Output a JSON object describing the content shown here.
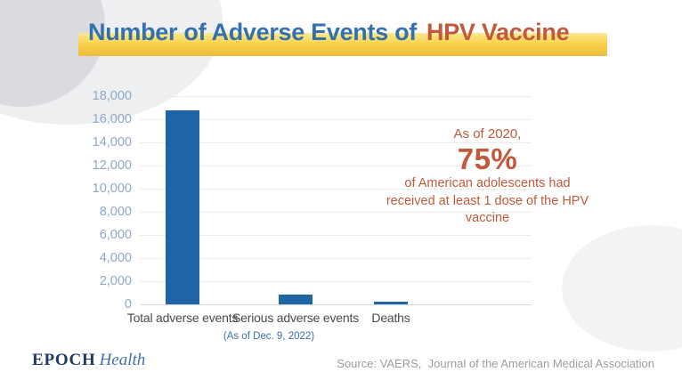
{
  "header": {
    "title_main": "Number of Adverse Events of",
    "title_accent": "HPV Vaccine",
    "title_color": "#3470ae",
    "accent_color": "#c1593a",
    "highlight_color": "#f9d44c"
  },
  "chart_data": {
    "type": "bar",
    "title": "Number of Adverse Events of HPV Vaccine",
    "categories": [
      "Total adverse events",
      "Serious adverse events",
      "Deaths"
    ],
    "values": [
      16800,
      850,
      200
    ],
    "bar_color": "#1f64a5",
    "xlabel": "",
    "ylabel": "",
    "ylim": [
      0,
      18000
    ],
    "ytick_step": 2000,
    "grid": true,
    "legend": false,
    "note": "(As of Dec. 9, 2022)"
  },
  "annotation": {
    "intro": "As of 2020,",
    "stat": "75%",
    "body": "of American adolescents had received at least 1 dose of the HPV vaccine",
    "color": "#c05a3c"
  },
  "footer": {
    "brand_primary": "EPOCH",
    "brand_secondary": "Health",
    "source": "Source: VAERS,  Journal of the American Medical Association"
  }
}
